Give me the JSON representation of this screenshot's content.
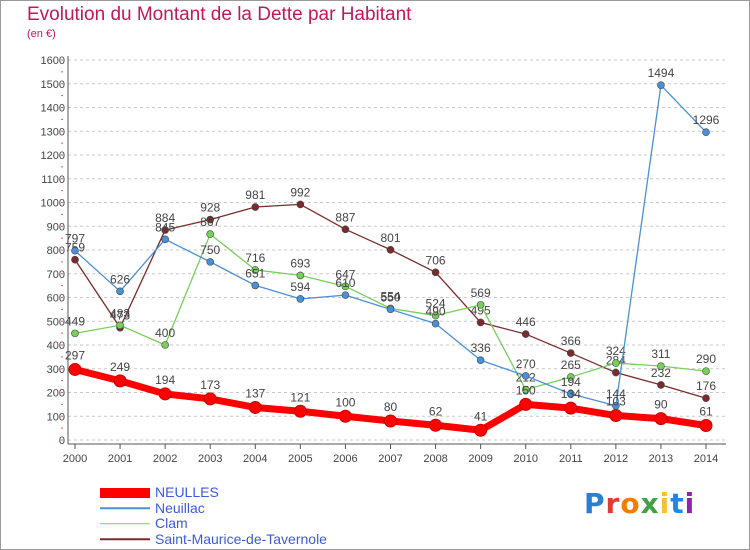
{
  "title": "Evolution du Montant de la Dette par Habitant",
  "unit": "(en €)",
  "logo": {
    "letters": [
      "P",
      "r",
      "o",
      "x",
      "i",
      "t",
      "i"
    ],
    "colors": [
      "#2a7fd4",
      "#e53935",
      "#f57c00",
      "#43a047",
      "#fbc02d",
      "#1e88e5",
      "#8e24aa"
    ]
  },
  "chart_data": {
    "type": "line",
    "x": [
      "2000",
      "2001",
      "2002",
      "2003",
      "2004",
      "2005",
      "2006",
      "2007",
      "2008",
      "2009",
      "2010",
      "2011",
      "2012",
      "2013",
      "2014"
    ],
    "y_ticks": [
      "0",
      "100",
      "200",
      "300",
      "400",
      "500",
      "600",
      "700",
      "800",
      "900",
      "1000",
      "1100",
      "1200",
      "1300",
      "1400",
      "1500",
      "1600"
    ],
    "ylim": [
      0,
      1600
    ],
    "grid": "horizontal dashed",
    "legend_position": "bottom-left",
    "series": [
      {
        "name": "Saint-Maurice-de-Tavernole",
        "color": "#7b2b2b",
        "width": 1.3,
        "values": [
          759,
          473,
          884,
          928,
          981,
          992,
          887,
          801,
          706,
          495,
          446,
          366,
          284,
          232,
          176
        ],
        "labels": [
          "759",
          "473",
          "884",
          "928",
          "981",
          "992",
          "887",
          "801",
          "706",
          "495",
          "446",
          "366",
          "284",
          "232",
          "176"
        ]
      },
      {
        "name": "Clam",
        "color": "#77d05a",
        "width": 1.3,
        "values": [
          449,
          483,
          400,
          867,
          716,
          693,
          647,
          554,
          524,
          569,
          212,
          265,
          324,
          311,
          290
        ],
        "labels": [
          "449",
          "483",
          "400",
          "867",
          "716",
          "693",
          "647",
          "554",
          "524",
          "569",
          "212",
          "265",
          "324",
          "311",
          "290"
        ]
      },
      {
        "name": "Neuillac",
        "color": "#4a90d9",
        "width": 1.3,
        "values": [
          797,
          626,
          845,
          750,
          651,
          594,
          610,
          550,
          490,
          336,
          270,
          194,
          144,
          1494,
          1296
        ],
        "labels": [
          "797",
          "626",
          "845",
          "750",
          "651",
          "594",
          "610",
          "550",
          "490",
          "336",
          "270",
          "194",
          "144",
          "1494",
          "1296"
        ]
      },
      {
        "name": "NEULLES",
        "color": "#ff0000",
        "width": 7,
        "values": [
          297,
          249,
          194,
          173,
          137,
          121,
          100,
          80,
          62,
          41,
          150,
          134,
          103,
          90,
          61
        ],
        "labels": [
          "297",
          "249",
          "194",
          "173",
          "137",
          "121",
          "100",
          "80",
          "62",
          "41",
          "150",
          "134",
          "103",
          "90",
          "61"
        ]
      }
    ],
    "legend": [
      "NEULLES",
      "Neuillac",
      "Clam",
      "Saint-Maurice-de-Tavernole"
    ]
  }
}
